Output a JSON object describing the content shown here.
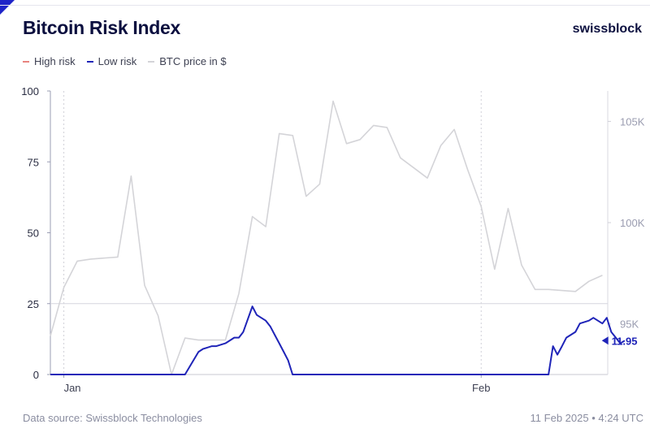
{
  "header": {
    "title": "Bitcoin Risk Index",
    "brand": "swissblock"
  },
  "legend": [
    {
      "label": "High risk",
      "color": "#e8837f"
    },
    {
      "label": "Low risk",
      "color": "#1f24b8"
    },
    {
      "label": "BTC price in $",
      "color": "#d4d4d8"
    }
  ],
  "footer": {
    "source": "Data source: Swissblock Technologies",
    "timestamp": "11 Feb 2025 • 4:24 UTC"
  },
  "chart_data": {
    "type": "line",
    "title": "Bitcoin Risk Index",
    "x_ticks": [
      "Jan",
      "Feb"
    ],
    "y_left": {
      "ticks": [
        "0",
        "25",
        "50",
        "75",
        "100"
      ],
      "lim": [
        0,
        100
      ]
    },
    "y_right": {
      "ticks": [
        "95K",
        "100K",
        "105K"
      ],
      "lim": [
        92500,
        106500
      ]
    },
    "threshold": 25,
    "last_value_label": "11.95",
    "series": [
      {
        "name": "BTC price in $",
        "axis": "right",
        "x": [
          "2024-12-31",
          "2025-01-01",
          "2025-01-02",
          "2025-01-03",
          "2025-01-05",
          "2025-01-06",
          "2025-01-07",
          "2025-01-08",
          "2025-01-09",
          "2025-01-10",
          "2025-01-11",
          "2025-01-13",
          "2025-01-14",
          "2025-01-15",
          "2025-01-16",
          "2025-01-17",
          "2025-01-18",
          "2025-01-19",
          "2025-01-20",
          "2025-01-21",
          "2025-01-22",
          "2025-01-23",
          "2025-01-24",
          "2025-01-25",
          "2025-01-26",
          "2025-01-27",
          "2025-01-28",
          "2025-01-29",
          "2025-01-30",
          "2025-01-31",
          "2025-02-01",
          "2025-02-02",
          "2025-02-03",
          "2025-02-04",
          "2025-02-05",
          "2025-02-06",
          "2025-02-08",
          "2025-02-09",
          "2025-02-10"
        ],
        "values": [
          94400,
          96800,
          98100,
          98200,
          98300,
          102300,
          96900,
          95400,
          92500,
          94300,
          94200,
          94200,
          96500,
          100300,
          99800,
          104400,
          104300,
          101300,
          101900,
          106000,
          103900,
          104100,
          104800,
          104700,
          103200,
          102700,
          102200,
          103800,
          104600,
          102600,
          100800,
          97700,
          100700,
          97900,
          96700,
          96700,
          96600,
          97100,
          97400
        ]
      },
      {
        "name": "Low risk",
        "axis": "left",
        "x": [
          "2024-12-31",
          "2025-01-05",
          "2025-01-10",
          "2025-01-11",
          "2025-01-11",
          "2025-01-12",
          "2025-01-12",
          "2025-01-13",
          "2025-01-13",
          "2025-01-13",
          "2025-01-14",
          "2025-01-14",
          "2025-01-15",
          "2025-01-15",
          "2025-01-16",
          "2025-01-16",
          "2025-01-16",
          "2025-01-17",
          "2025-01-17",
          "2025-01-17",
          "2025-01-17",
          "2025-01-18",
          "2025-02-06",
          "2025-02-06",
          "2025-02-06",
          "2025-02-07",
          "2025-02-07",
          "2025-02-08",
          "2025-02-08",
          "2025-02-09",
          "2025-02-09",
          "2025-02-10",
          "2025-02-10",
          "2025-02-10",
          "2025-02-11",
          "2025-02-11",
          "2025-02-11"
        ],
        "values": [
          0,
          0,
          0,
          8,
          9,
          10,
          10,
          11,
          12,
          13,
          13,
          15,
          24,
          21,
          19,
          17,
          14,
          11,
          8,
          5,
          0,
          0,
          0,
          10,
          7,
          10,
          13,
          15,
          18,
          19,
          20,
          18,
          20,
          15,
          13,
          11,
          11.95
        ]
      },
      {
        "name": "High risk",
        "axis": "left",
        "x": [],
        "values": []
      }
    ]
  }
}
